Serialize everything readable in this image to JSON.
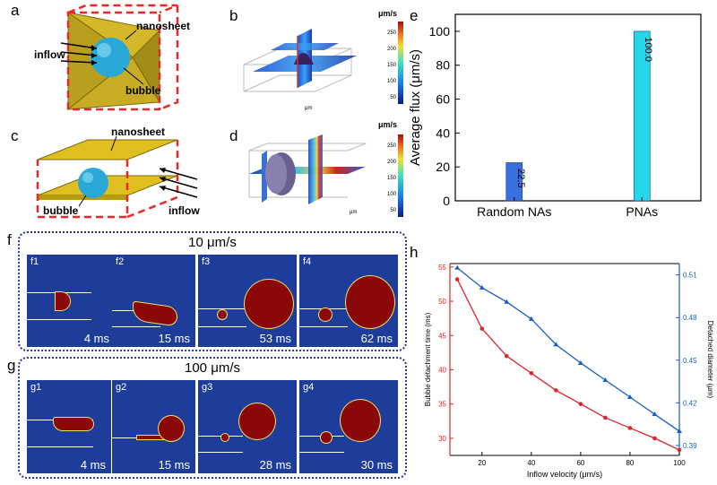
{
  "panel_labels": {
    "a": "a",
    "b": "b",
    "c": "c",
    "d": "d",
    "e": "e",
    "f": "f",
    "g": "g",
    "h": "h"
  },
  "schematic_a": {
    "nanosheet": "nanosheet",
    "inflow": "inflow",
    "bubble": "bubble"
  },
  "schematic_c": {
    "nanosheet": "nanosheet",
    "inflow": "inflow",
    "bubble": "bubble"
  },
  "sim_b": {
    "unit": "μm/s",
    "colorbar_ticks": [
      "250",
      "200",
      "150",
      "100",
      "50",
      "0"
    ],
    "axis": "μm"
  },
  "sim_d": {
    "unit": "μm/s",
    "colorbar_ticks": [
      "250",
      "200",
      "150",
      "100",
      "50",
      "0"
    ],
    "axis": "μm"
  },
  "f_series": {
    "title": "10 μm/s",
    "frames": [
      {
        "id": "f1",
        "time": "4 ms"
      },
      {
        "id": "f2",
        "time": "15 ms"
      },
      {
        "id": "f3",
        "time": "53 ms"
      },
      {
        "id": "f4",
        "time": "62 ms"
      }
    ]
  },
  "g_series": {
    "title": "100 μm/s",
    "frames": [
      {
        "id": "g1",
        "time": "4 ms"
      },
      {
        "id": "g2",
        "time": "15 ms"
      },
      {
        "id": "g3",
        "time": "28 ms"
      },
      {
        "id": "g4",
        "time": "30 ms"
      }
    ]
  },
  "chart_data": [
    {
      "type": "bar",
      "categories": [
        "Random NAs",
        "PNAs"
      ],
      "values": [
        22.5,
        100.0
      ],
      "value_labels": [
        "22.5",
        "100.0"
      ],
      "ylabel": "Average flux (μm/s)",
      "ylim": [
        0,
        110
      ],
      "yticks": [
        "0",
        "20",
        "40",
        "60",
        "80",
        "100"
      ],
      "colors": [
        "#3a6fe0",
        "#22d8e8"
      ]
    },
    {
      "type": "line",
      "xlabel": "Inflow velocity (μm/s)",
      "x": [
        10,
        20,
        30,
        40,
        50,
        60,
        70,
        80,
        90,
        100
      ],
      "xticks": [
        "20",
        "40",
        "60",
        "80",
        "100"
      ],
      "xlim": [
        7,
        100
      ],
      "series": [
        {
          "axis": "left",
          "color": "#e0242a",
          "values": [
            53.2,
            46.0,
            42.0,
            39.5,
            37.0,
            35.0,
            33.0,
            31.5,
            30.0,
            28.3
          ]
        },
        {
          "axis": "right",
          "color": "#1a5fc0",
          "values": [
            0.515,
            0.501,
            0.491,
            0.479,
            0.461,
            0.448,
            0.436,
            0.424,
            0.412,
            0.4
          ]
        }
      ],
      "ylabel_left": "Bubble detachment time (ms)",
      "ylim_left": [
        27.5,
        55.5
      ],
      "yticks_left": [
        "30",
        "35",
        "40",
        "45",
        "50",
        "55"
      ],
      "ylabel_right": "Detached diameter (μm)",
      "ylim_right": [
        0.383,
        0.518
      ],
      "yticks_right": [
        "0.39",
        "0.42",
        "0.45",
        "0.48",
        "0.51"
      ],
      "left_color": "#e0242a",
      "right_color": "#1a5fc0"
    }
  ]
}
